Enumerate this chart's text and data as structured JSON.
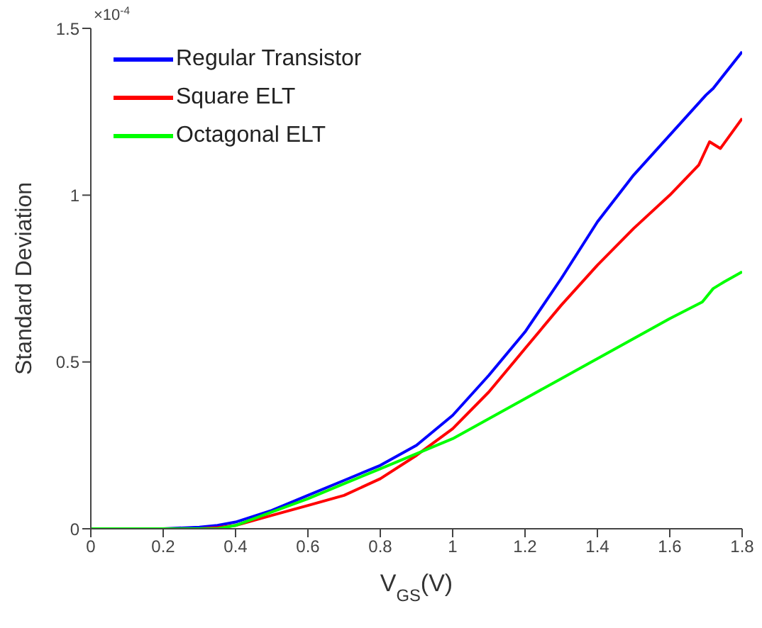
{
  "chart_data": {
    "type": "line",
    "xlabel": "V$_{GS}$(V)",
    "ylabel": "Standard Deviation",
    "annotations": [
      "×10$^{-4}$"
    ],
    "xlim": [
      0,
      1.8
    ],
    "xticks": [
      0,
      0.2,
      0.4,
      0.6,
      0.8,
      1,
      1.2,
      1.4,
      1.6,
      1.8
    ],
    "ylim": [
      0,
      1.5
    ],
    "yticks": [
      0,
      0.5,
      1,
      1.5
    ],
    "grid": false,
    "legend": "top left",
    "marker": "none",
    "line_style": "solid",
    "series": [
      {
        "name": "Regular Transistor",
        "color": "#0000ff",
        "x": [
          0,
          0.2,
          0.3,
          0.35,
          0.4,
          0.5,
          0.6,
          0.7,
          0.8,
          0.9,
          1.0,
          1.1,
          1.2,
          1.3,
          1.4,
          1.5,
          1.6,
          1.7,
          1.72,
          1.8
        ],
        "values": [
          0,
          0,
          0.005,
          0.01,
          0.02,
          0.055,
          0.1,
          0.145,
          0.19,
          0.25,
          0.34,
          0.46,
          0.59,
          0.75,
          0.92,
          1.06,
          1.18,
          1.3,
          1.32,
          1.43
        ]
      },
      {
        "name": "Square ELT",
        "color": "#ff0000",
        "x": [
          0.3,
          0.35,
          0.4,
          0.5,
          0.6,
          0.7,
          0.8,
          0.9,
          1.0,
          1.1,
          1.2,
          1.3,
          1.4,
          1.5,
          1.6,
          1.68,
          1.71,
          1.74,
          1.8
        ],
        "values": [
          0,
          0.003,
          0.01,
          0.04,
          0.07,
          0.1,
          0.15,
          0.22,
          0.3,
          0.41,
          0.54,
          0.67,
          0.79,
          0.9,
          1.0,
          1.09,
          1.16,
          1.14,
          1.23
        ]
      },
      {
        "name": "Octagonal ELT",
        "color": "#00ff00",
        "x": [
          0,
          0.2,
          0.3,
          0.35,
          0.4,
          0.5,
          0.6,
          0.7,
          0.8,
          0.9,
          1.0,
          1.1,
          1.2,
          1.3,
          1.4,
          1.5,
          1.6,
          1.69,
          1.72,
          1.75,
          1.8
        ],
        "values": [
          0,
          0,
          0,
          0,
          0.01,
          0.05,
          0.09,
          0.135,
          0.18,
          0.225,
          0.27,
          0.33,
          0.39,
          0.45,
          0.51,
          0.57,
          0.63,
          0.68,
          0.72,
          0.74,
          0.77
        ]
      }
    ]
  }
}
